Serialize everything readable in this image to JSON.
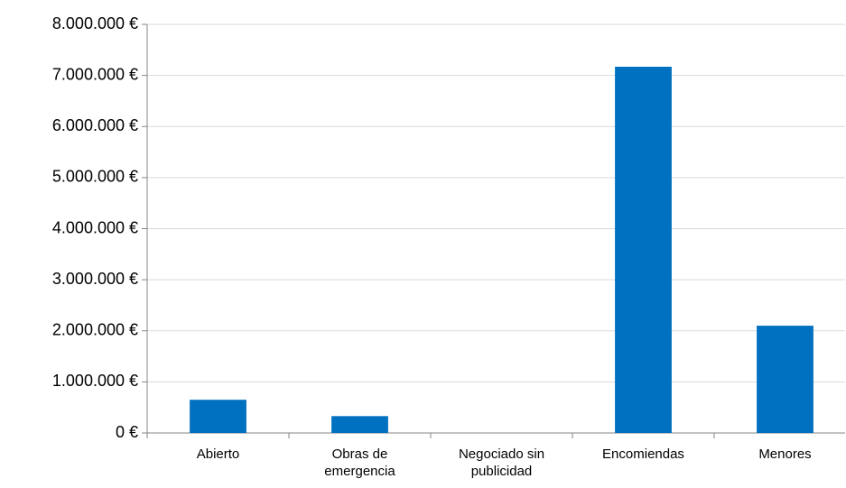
{
  "chart_data": {
    "type": "bar",
    "categories": [
      "Abierto",
      "Obras de emergencia",
      "Negociado sin publicidad",
      "Encomiendas",
      "Menores"
    ],
    "values": [
      650000,
      330000,
      0,
      7170000,
      2100000
    ],
    "color": "#0070c0",
    "ylim": [
      0,
      8000000
    ],
    "yticks": [
      {
        "value": 0,
        "label": "0 €"
      },
      {
        "value": 1000000,
        "label": "1.000.000 €"
      },
      {
        "value": 2000000,
        "label": "2.000.000 €"
      },
      {
        "value": 3000000,
        "label": "3.000.000 €"
      },
      {
        "value": 4000000,
        "label": "4.000.000 €"
      },
      {
        "value": 5000000,
        "label": "5.000.000 €"
      },
      {
        "value": 6000000,
        "label": "6.000.000 €"
      },
      {
        "value": 7000000,
        "label": "7.000.000 €"
      },
      {
        "value": 8000000,
        "label": "8.000.000 €"
      }
    ],
    "grid": true
  }
}
